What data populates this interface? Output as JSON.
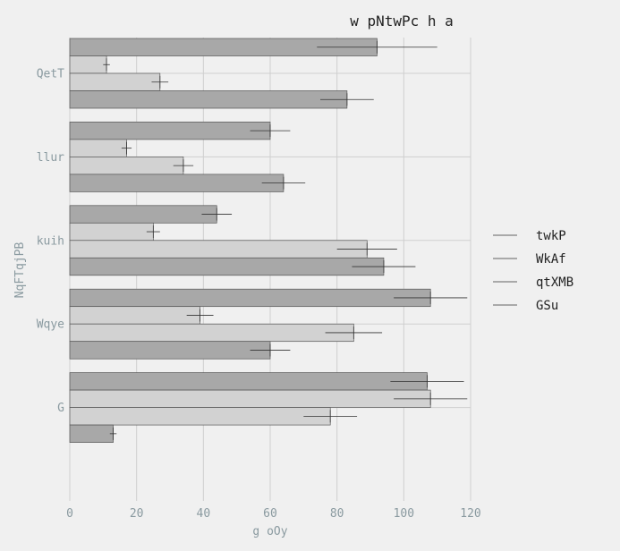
{
  "chart_data": {
    "type": "bar",
    "orientation": "horizontal",
    "title": "w pNtwPc h a",
    "xlabel": "g oOy",
    "ylabel": "NqFTqjPB",
    "xlim": [
      0,
      120
    ],
    "xticks": [
      0,
      20,
      40,
      60,
      80,
      100,
      120
    ],
    "grid": true,
    "legend_position": "right",
    "categories": [
      "QetT",
      "llur",
      "kuih",
      "Wqye",
      "G"
    ],
    "series": [
      {
        "name": "twkP",
        "color": "#a8a8a8",
        "values": [
          92,
          60,
          44,
          108,
          107
        ],
        "errors": [
          18,
          6,
          4.5,
          11,
          11
        ]
      },
      {
        "name": "WkAf",
        "color": "#d2d2d2",
        "values": [
          11,
          17,
          25,
          39,
          108
        ],
        "errors": [
          1,
          1.5,
          2,
          4,
          11
        ]
      },
      {
        "name": "qtXMB",
        "color": "#d2d2d2",
        "values": [
          27,
          34,
          89,
          85,
          78
        ],
        "errors": [
          2.5,
          3,
          9,
          8.5,
          8
        ]
      },
      {
        "name": "GSu",
        "color": "#a8a8a8",
        "values": [
          83,
          64,
          94,
          60,
          13
        ],
        "errors": [
          8,
          6.5,
          9.5,
          6,
          1
        ]
      }
    ]
  }
}
